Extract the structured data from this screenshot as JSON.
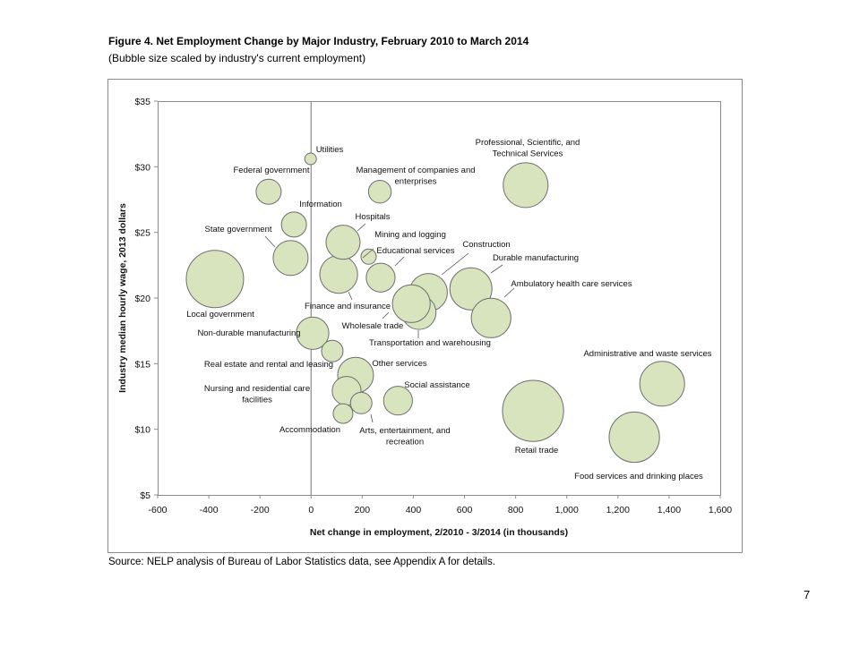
{
  "document": {
    "title": "Figure 4. Net Employment Change by Major Industry, February 2010 to March 2014",
    "subtitle": "(Bubble size scaled by industry's current employment)",
    "source": "Source: NELP analysis of Bureau of Labor Statistics data, see Appendix A for details.",
    "page_number": "7"
  },
  "chart_data": {
    "type": "bubble",
    "xlabel": "Net change in employment, 2/2010 - 3/2014 (in thousands)",
    "ylabel": "Industry median hourly wage, 2013 dollars",
    "xlim": [
      -600,
      1600
    ],
    "ylim": [
      5,
      35
    ],
    "x_ticks": [
      "-600",
      "-400",
      "-200",
      "0",
      "200",
      "400",
      "600",
      "800",
      "1,000",
      "1,200",
      "1,400",
      "1,600"
    ],
    "x_tick_values": [
      -600,
      -400,
      -200,
      0,
      200,
      400,
      600,
      800,
      1000,
      1200,
      1400,
      1600
    ],
    "y_ticks": [
      "$5",
      "$10",
      "$15",
      "$20",
      "$25",
      "$30",
      "$35"
    ],
    "y_tick_values": [
      5,
      10,
      15,
      20,
      25,
      30,
      35
    ],
    "grid": false,
    "legend": "none",
    "bubble_color": "#d7e4bd",
    "bubble_edge_color": "#6f6f6f",
    "size_note": "relative current employment (thousands, estimated from bubble area)",
    "points": [
      {
        "label": [
          "Local government"
        ],
        "x": -376,
        "y": 21.45,
        "size": 14300
      },
      {
        "label": [
          "Retail trade"
        ],
        "x": 868,
        "y": 11.4,
        "size": 16200
      },
      {
        "label": [
          "Food services and drinking places"
        ],
        "x": 1264,
        "y": 9.4,
        "size": 11000
      },
      {
        "label": [
          "Administrative and waste services"
        ],
        "x": 1373,
        "y": 13.47,
        "size": 8750
      },
      {
        "label": [
          "Professional, Scientific, and",
          "Technical Services"
        ],
        "x": 839,
        "y": 28.6,
        "size": 8750
      },
      {
        "label": [
          "Durable manufacturing"
        ],
        "x": 625,
        "y": 20.7,
        "size": 7700
      },
      {
        "label": [
          "Ambulatory health care services"
        ],
        "x": 704,
        "y": 18.48,
        "size": 6800
      },
      {
        "label": [
          "Construction"
        ],
        "x": 459,
        "y": 20.43,
        "size": 6200
      },
      {
        "label": [
          "Transportation and warehousing"
        ],
        "x": 422,
        "y": 18.9,
        "size": 5050
      },
      {
        "label": [
          "Wholesale trade"
        ],
        "x": 392,
        "y": 19.57,
        "size": 6200
      },
      {
        "label": [
          "Finance and insurance"
        ],
        "x": 108,
        "y": 21.8,
        "size": 6200
      },
      {
        "label": [
          "Other services"
        ],
        "x": 174,
        "y": 14.12,
        "size": 5600
      },
      {
        "label": [
          "State government"
        ],
        "x": -80,
        "y": 23.05,
        "size": 5300
      },
      {
        "label": [
          "Hospitals"
        ],
        "x": 125,
        "y": 24.25,
        "size": 5050
      },
      {
        "label": [
          "Non-durable manufacturing"
        ],
        "x": 6,
        "y": 17.32,
        "size": 4550
      },
      {
        "label": [
          "Educational services"
        ],
        "x": 272,
        "y": 21.55,
        "size": 3600
      },
      {
        "label": [
          "Nursing and residential care",
          "facilities"
        ],
        "x": 139,
        "y": 12.93,
        "size": 3600
      },
      {
        "label": [
          "Social assistance"
        ],
        "x": 340,
        "y": 12.18,
        "size": 3600
      },
      {
        "label": [
          "Federal government"
        ],
        "x": -166,
        "y": 28.1,
        "size": 2750
      },
      {
        "label": [
          "Information"
        ],
        "x": -67,
        "y": 25.6,
        "size": 2750
      },
      {
        "label": [
          "Management of companies and",
          "enterprises"
        ],
        "x": 269,
        "y": 28.1,
        "size": 2250
      },
      {
        "label": [
          "Real estate and rental and leasing"
        ],
        "x": 83,
        "y": 15.96,
        "size": 2000
      },
      {
        "label": [
          "Arts, entertainment, and",
          "recreation"
        ],
        "x": 196,
        "y": 12.0,
        "size": 2000
      },
      {
        "label": [
          "Accommodation"
        ],
        "x": 125,
        "y": 11.2,
        "size": 1700
      },
      {
        "label": [
          "Mining and logging"
        ],
        "x": 225,
        "y": 23.15,
        "size": 1000
      },
      {
        "label": [
          "Utilities"
        ],
        "x": -2,
        "y": 30.6,
        "size": 590
      }
    ]
  }
}
